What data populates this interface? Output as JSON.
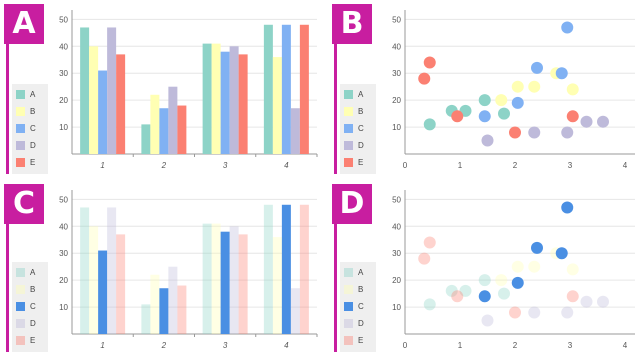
{
  "palette": {
    "A": "#8dd3c7",
    "B": "#ffffb3",
    "C": "#80b1f3",
    "D": "#bebada",
    "E": "#fb8072",
    "C_focus": "#4a8fe3",
    "badge": "#c81ea0"
  },
  "chart_data": [
    {
      "id": "A",
      "badge": "A",
      "type": "bar",
      "categories": [
        "1",
        "2",
        "3",
        "4"
      ],
      "ylim": [
        0,
        52
      ],
      "yticks": [
        "10",
        "20",
        "30",
        "40",
        "50"
      ],
      "grid": true,
      "legend_position": "left",
      "series": [
        {
          "name": "A",
          "values": [
            47,
            11,
            41,
            48
          ]
        },
        {
          "name": "B",
          "values": [
            40,
            22,
            41,
            36
          ]
        },
        {
          "name": "C",
          "values": [
            31,
            17,
            38,
            48
          ]
        },
        {
          "name": "D",
          "values": [
            47,
            25,
            40,
            17
          ]
        },
        {
          "name": "E",
          "values": [
            37,
            18,
            37,
            48
          ]
        }
      ]
    },
    {
      "id": "B",
      "badge": "B",
      "type": "scatter",
      "xlim": [
        0,
        4
      ],
      "ylim": [
        0,
        52
      ],
      "xticks": [
        "0",
        "1",
        "2",
        "3",
        "4"
      ],
      "yticks": [
        "10",
        "20",
        "30",
        "40",
        "50"
      ],
      "grid": true,
      "legend_position": "left",
      "series": [
        {
          "name": "A",
          "points": [
            [
              0.45,
              11
            ],
            [
              0.85,
              16
            ],
            [
              1.1,
              16
            ],
            [
              1.45,
              20
            ],
            [
              1.8,
              15
            ]
          ]
        },
        {
          "name": "B",
          "points": [
            [
              1.75,
              20
            ],
            [
              2.05,
              25
            ],
            [
              2.35,
              25
            ],
            [
              2.75,
              30
            ],
            [
              3.05,
              24
            ]
          ]
        },
        {
          "name": "C",
          "points": [
            [
              1.45,
              14
            ],
            [
              2.05,
              19
            ],
            [
              2.4,
              32
            ],
            [
              2.85,
              30
            ],
            [
              2.95,
              47
            ]
          ]
        },
        {
          "name": "D",
          "points": [
            [
              1.5,
              5
            ],
            [
              2.35,
              8
            ],
            [
              2.95,
              8
            ],
            [
              3.3,
              12
            ],
            [
              3.6,
              12
            ]
          ]
        },
        {
          "name": "E",
          "points": [
            [
              0.35,
              28
            ],
            [
              0.45,
              34
            ],
            [
              0.95,
              14
            ],
            [
              2.0,
              8
            ],
            [
              3.05,
              14
            ]
          ]
        }
      ]
    },
    {
      "id": "C",
      "badge": "C",
      "type": "bar",
      "categories": [
        "1",
        "2",
        "3",
        "4"
      ],
      "ylim": [
        0,
        52
      ],
      "yticks": [
        "10",
        "20",
        "30",
        "40",
        "50"
      ],
      "grid": true,
      "legend_position": "left",
      "highlighted_series": "C",
      "series": [
        {
          "name": "A",
          "values": [
            47,
            11,
            41,
            48
          ]
        },
        {
          "name": "B",
          "values": [
            40,
            22,
            41,
            36
          ]
        },
        {
          "name": "C",
          "values": [
            31,
            17,
            38,
            48
          ]
        },
        {
          "name": "D",
          "values": [
            47,
            25,
            40,
            17
          ]
        },
        {
          "name": "E",
          "values": [
            37,
            18,
            37,
            48
          ]
        }
      ]
    },
    {
      "id": "D",
      "badge": "D",
      "type": "scatter",
      "xlim": [
        0,
        4
      ],
      "ylim": [
        0,
        52
      ],
      "xticks": [
        "0",
        "1",
        "2",
        "3",
        "4"
      ],
      "yticks": [
        "10",
        "20",
        "30",
        "40",
        "50"
      ],
      "grid": true,
      "legend_position": "left",
      "highlighted_series": "C",
      "series": [
        {
          "name": "A",
          "points": [
            [
              0.45,
              11
            ],
            [
              0.85,
              16
            ],
            [
              1.1,
              16
            ],
            [
              1.45,
              20
            ],
            [
              1.8,
              15
            ]
          ]
        },
        {
          "name": "B",
          "points": [
            [
              1.75,
              20
            ],
            [
              2.05,
              25
            ],
            [
              2.35,
              25
            ],
            [
              2.75,
              30
            ],
            [
              3.05,
              24
            ]
          ]
        },
        {
          "name": "C",
          "points": [
            [
              1.45,
              14
            ],
            [
              2.05,
              19
            ],
            [
              2.4,
              32
            ],
            [
              2.85,
              30
            ],
            [
              2.95,
              47
            ]
          ]
        },
        {
          "name": "D",
          "points": [
            [
              1.5,
              5
            ],
            [
              2.35,
              8
            ],
            [
              2.95,
              8
            ],
            [
              3.3,
              12
            ],
            [
              3.6,
              12
            ]
          ]
        },
        {
          "name": "E",
          "points": [
            [
              0.35,
              28
            ],
            [
              0.45,
              34
            ],
            [
              0.95,
              14
            ],
            [
              2.0,
              8
            ],
            [
              3.05,
              14
            ]
          ]
        }
      ]
    }
  ]
}
